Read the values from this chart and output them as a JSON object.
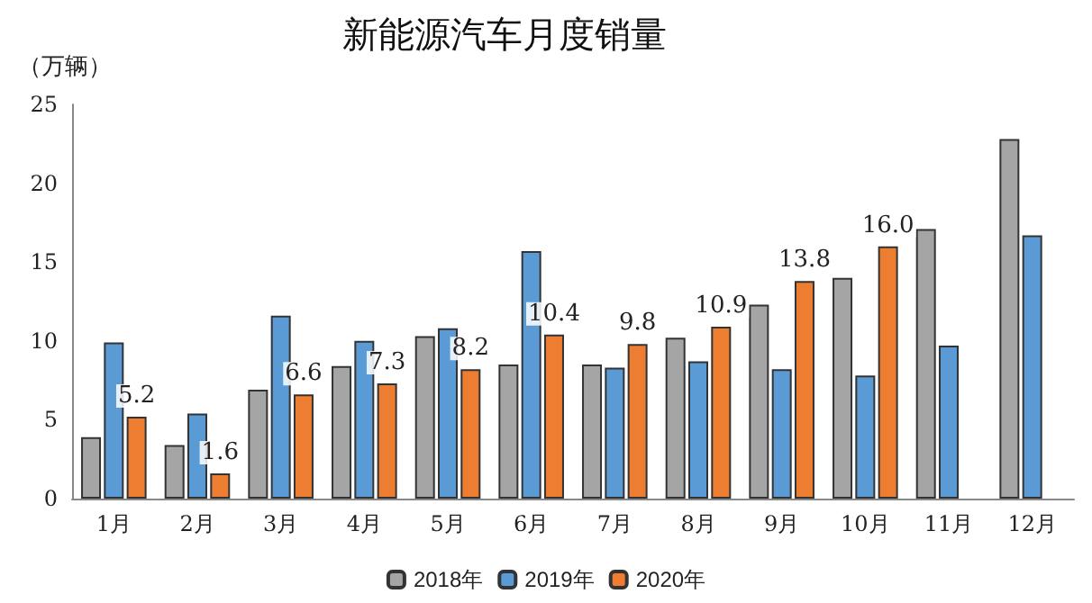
{
  "chart_data": {
    "type": "bar",
    "title": "新能源汽车月度销量",
    "ylabel": "（万辆）",
    "categories": [
      "1月",
      "2月",
      "3月",
      "4月",
      "5月",
      "6月",
      "7月",
      "8月",
      "9月",
      "10月",
      "11月",
      "12月"
    ],
    "series": [
      {
        "name": "2018年",
        "color": "#a5a5a5",
        "values": [
          3.9,
          3.4,
          6.9,
          8.4,
          10.3,
          8.5,
          8.5,
          10.2,
          12.3,
          14.0,
          17.1,
          22.8
        ]
      },
      {
        "name": "2019年",
        "color": "#5b9bd5",
        "values": [
          9.9,
          5.4,
          11.6,
          10.0,
          10.8,
          15.7,
          8.3,
          8.7,
          8.2,
          7.8,
          9.7,
          16.7
        ]
      },
      {
        "name": "2020年",
        "color": "#ed7d31",
        "values": [
          5.2,
          1.6,
          6.6,
          7.3,
          8.2,
          10.4,
          9.8,
          10.9,
          13.8,
          16.0,
          null,
          null
        ],
        "value_labels": [
          "5.2",
          "1.6",
          "6.6",
          "7.3",
          "8.2",
          "10.4",
          "9.8",
          "10.9",
          "13.8",
          "16.0",
          null,
          null
        ]
      }
    ],
    "ylim": [
      0,
      25
    ],
    "yticks": [
      0,
      5,
      10,
      15,
      20,
      25
    ],
    "grid": false,
    "legend": "bottom"
  }
}
